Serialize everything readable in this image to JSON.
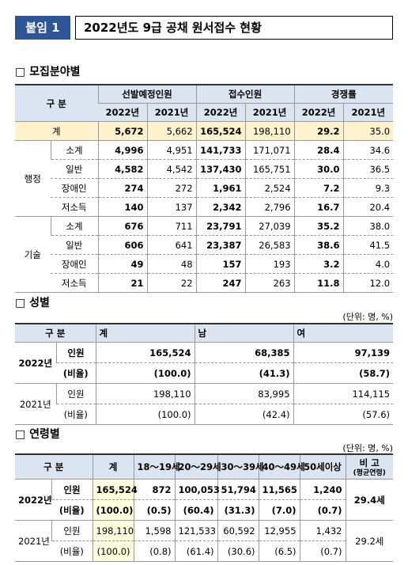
{
  "header": {
    "badge": "붙임 1",
    "title": "2022년도 9급 공채 원서접수 현황"
  },
  "field": {
    "title": "□ 모집분야별",
    "table": {
      "label": "구 분",
      "groups": [
        "선발예정인원",
        "접수인원",
        "경쟁률"
      ],
      "years": [
        "2022년",
        "2021년",
        "2022년",
        "2021년",
        "2022년",
        "2021년"
      ],
      "total": {
        "label": "계",
        "cells": [
          "5,672",
          "5,662",
          "165,524",
          "198,110",
          "29.2",
          "35.0"
        ]
      },
      "sections": [
        {
          "name": "행정",
          "rows": [
            {
              "label": "소계",
              "cells": [
                "4,996",
                "4,951",
                "141,733",
                "171,071",
                "28.4",
                "34.6"
              ]
            },
            {
              "label": "일반",
              "cells": [
                "4,582",
                "4,542",
                "137,430",
                "165,751",
                "30.0",
                "36.5"
              ]
            },
            {
              "label": "장애인",
              "cells": [
                "274",
                "272",
                "1,961",
                "2,524",
                "7.2",
                "9.3"
              ]
            },
            {
              "label": "저소득",
              "cells": [
                "140",
                "137",
                "2,342",
                "2,796",
                "16.7",
                "20.4"
              ]
            }
          ]
        },
        {
          "name": "기술",
          "rows": [
            {
              "label": "소계",
              "cells": [
                "676",
                "711",
                "23,791",
                "27,039",
                "35.2",
                "38.0"
              ]
            },
            {
              "label": "일반",
              "cells": [
                "606",
                "641",
                "23,387",
                "26,583",
                "38.6",
                "41.5"
              ]
            },
            {
              "label": "장애인",
              "cells": [
                "49",
                "48",
                "157",
                "193",
                "3.2",
                "4.0"
              ]
            },
            {
              "label": "저소득",
              "cells": [
                "21",
                "22",
                "247",
                "263",
                "11.8",
                "12.0"
              ]
            }
          ]
        }
      ]
    }
  },
  "gender": {
    "title": "□ 성별",
    "unit": "(단위: 명, %)",
    "table": {
      "columns": [
        "구 분",
        "계",
        "남",
        "여"
      ],
      "rows": [
        {
          "year": "2022년",
          "lines": [
            {
              "label": "인원",
              "cells": [
                "165,524",
                "68,385",
                "97,139"
              ]
            },
            {
              "label": "(비율)",
              "cells": [
                "(100.0)",
                "(41.3)",
                "(58.7)"
              ]
            }
          ]
        },
        {
          "year": "2021년",
          "lines": [
            {
              "label": "인원",
              "cells": [
                "198,110",
                "83,995",
                "114,115"
              ]
            },
            {
              "label": "(비율)",
              "cells": [
                "(100.0)",
                "(42.4)",
                "(57.6)"
              ]
            }
          ]
        }
      ]
    }
  },
  "age": {
    "title": "□ 연령별",
    "unit": "(단위: 명, %)",
    "table": {
      "columns": [
        "구 분",
        "계",
        "18～19세",
        "20～29세",
        "30～39세",
        "40～49세",
        "50세이상"
      ],
      "note_header": "비 고",
      "note_sub": "(평균연령)",
      "rows": [
        {
          "year": "2022년",
          "note": "29.4세",
          "lines": [
            {
              "label": "인원",
              "cells": [
                "165,524",
                "872",
                "100,053",
                "51,794",
                "11,565",
                "1,240"
              ]
            },
            {
              "label": "(비율)",
              "cells": [
                "(100.0)",
                "(0.5)",
                "(60.4)",
                "(31.3)",
                "(7.0)",
                "(0.7)"
              ]
            }
          ]
        },
        {
          "year": "2021년",
          "note": "29.2세",
          "lines": [
            {
              "label": "인원",
              "cells": [
                "198,110",
                "1,598",
                "121,533",
                "60,592",
                "12,955",
                "1,432"
              ]
            },
            {
              "label": "(비율)",
              "cells": [
                "(100.0)",
                "(0.8)",
                "(61.4)",
                "(30.6)",
                "(6.5)",
                "(0.7)"
              ]
            }
          ]
        }
      ]
    }
  }
}
